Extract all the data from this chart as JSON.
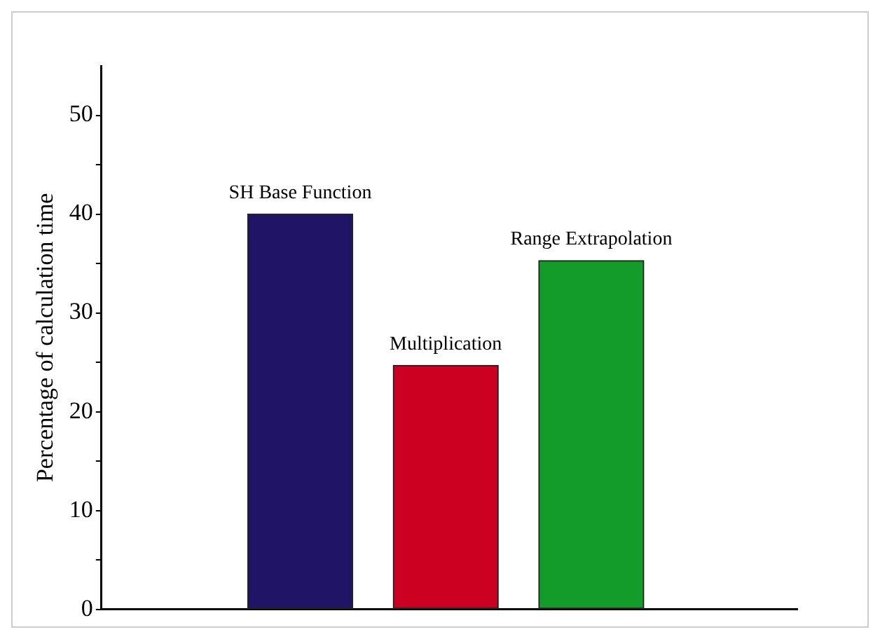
{
  "chart_data": {
    "type": "bar",
    "categories": [
      "SH Base Function",
      "Multiplication",
      "Range Extrapolation"
    ],
    "values": [
      40,
      24.7,
      35.3
    ],
    "colors": [
      "#201466",
      "#cc0020",
      "#149c2a"
    ],
    "ylabel": "Percentage of calculation time",
    "ylim": [
      0,
      55
    ],
    "yticks": [
      0,
      {
        "value": 5,
        "label": null
      },
      10,
      {
        "value": 15,
        "label": null
      },
      20,
      {
        "value": 25,
        "label": null
      },
      30,
      {
        "value": 35,
        "label": null
      },
      40,
      {
        "value": 45,
        "label": null
      },
      50
    ],
    "grid": false,
    "legend": false
  }
}
